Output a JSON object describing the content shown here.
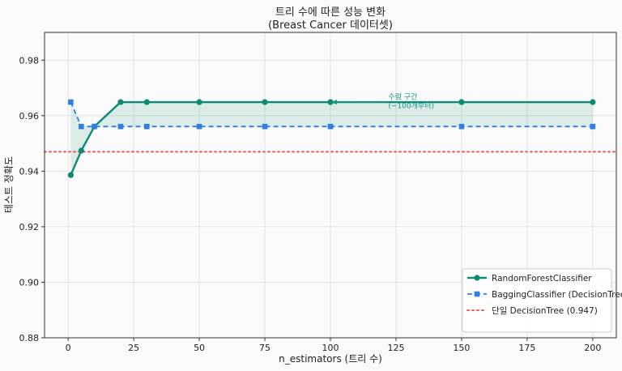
{
  "chart_data": {
    "type": "line",
    "title": "트리 수에 따른 성능 변화",
    "subtitle": "(Breast Cancer 데이터셋)",
    "xlabel": "n_estimators (트리 수)",
    "ylabel": "테스트 정확도",
    "xlim": [
      -9,
      209
    ],
    "ylim": [
      0.88,
      0.99
    ],
    "xticks": [
      0,
      25,
      50,
      75,
      100,
      125,
      150,
      175,
      200
    ],
    "yticks": [
      0.88,
      0.9,
      0.92,
      0.94,
      0.96,
      0.98
    ],
    "grid": true,
    "legend_position": "bottom-right",
    "series": [
      {
        "name": "RandomForestClassifier",
        "color": "#0e8a74",
        "marker": "circle",
        "style": "solid",
        "x": [
          1,
          5,
          10,
          20,
          30,
          50,
          75,
          100,
          150,
          200
        ],
        "y": [
          0.9386,
          0.9474,
          0.9561,
          0.9649,
          0.9649,
          0.9649,
          0.9649,
          0.9649,
          0.9649,
          0.9649
        ]
      },
      {
        "name": "BaggingClassifier (DecisionTree)",
        "color": "#2f7fe0",
        "marker": "square",
        "style": "dashed",
        "x": [
          1,
          5,
          10,
          20,
          30,
          50,
          75,
          100,
          150,
          200
        ],
        "y": [
          0.9649,
          0.9561,
          0.9561,
          0.9561,
          0.9561,
          0.9561,
          0.9561,
          0.9561,
          0.9561,
          0.9561
        ]
      }
    ],
    "reference_line": {
      "name": "단일 DecisionTree (0.947)",
      "value": 0.947,
      "color": "#f05a5a",
      "style": "dotted"
    },
    "fill_between": {
      "color": "#0e8a74",
      "opacity": 0.13
    },
    "annotation": {
      "line1": "수렴 구간",
      "line2": "(~100개부터)",
      "text_x": 131,
      "text_y": 0.9648,
      "arrow_to_x": 100,
      "arrow_to_y": 0.9649,
      "color": "#139a84"
    }
  }
}
